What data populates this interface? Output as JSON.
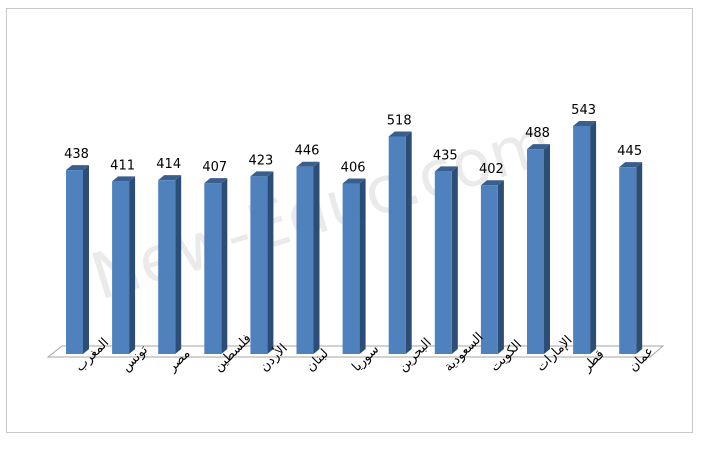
{
  "chart_data": {
    "type": "bar",
    "categories": [
      "المغرب",
      "تونس",
      "مصر",
      "فلسطين",
      "الأردن",
      "لبنان",
      "سوريا",
      "البحرين",
      "السعودية",
      "الكويت",
      "الإمارات",
      "قطر",
      "عمان"
    ],
    "values": [
      438,
      411,
      414,
      407,
      423,
      446,
      406,
      518,
      435,
      402,
      488,
      543,
      445
    ],
    "title": "",
    "xlabel": "",
    "ylabel": "",
    "ylim": [
      0,
      600
    ],
    "grid": false,
    "legend": "none",
    "style": "3d-column"
  },
  "watermark": "New-Educ.com",
  "colors": {
    "bar_front": "#4f81bd",
    "bar_side": "#2c4d75",
    "bar_top": "#3a5f8f",
    "floor": "#ffffff",
    "floor_stroke": "#a6a6a6",
    "frame": "#c8c8c8"
  }
}
